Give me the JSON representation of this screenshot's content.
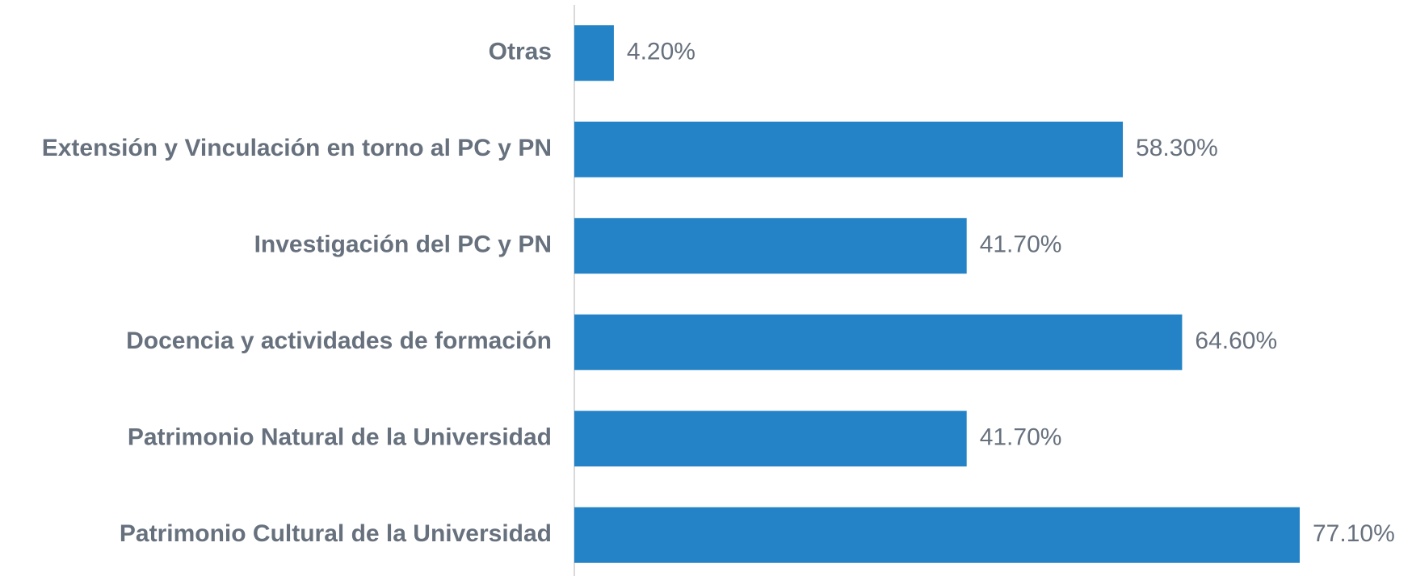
{
  "chart_data": {
    "type": "bar",
    "orientation": "horizontal",
    "categories": [
      "Otras",
      "Extensión y Vinculación en torno al PC y PN",
      "Investigación del PC y PN",
      "Docencia y actividades de formación",
      "Patrimonio Natural de la Universidad",
      "Patrimonio Cultural de la Universidad"
    ],
    "values": [
      4.2,
      58.3,
      41.7,
      64.6,
      41.7,
      77.1
    ],
    "value_labels": [
      "4.20%",
      "58.30%",
      "41.70%",
      "64.60%",
      "41.70%",
      "77.10%"
    ],
    "color": "#2383c6"
  }
}
